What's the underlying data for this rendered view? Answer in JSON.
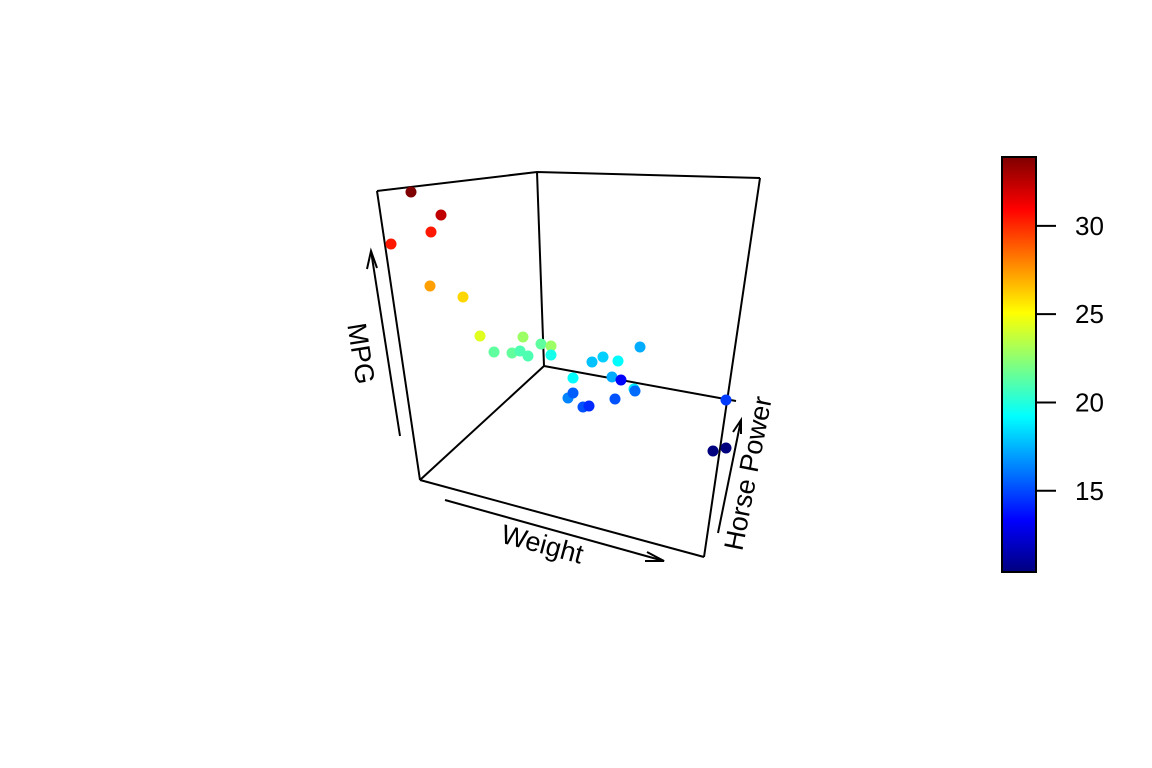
{
  "chart_data": {
    "type": "scatter",
    "projection": "3d",
    "title": "",
    "xlabel": "Weight",
    "ylabel": "Horse Power",
    "zlabel": "MPG",
    "color_variable": "MPG",
    "colormap": "jet",
    "colorbar": {
      "ticks": [
        15,
        20,
        25,
        30
      ],
      "tick_labels": [
        "15",
        "20",
        "25",
        "30"
      ],
      "range": [
        10.4,
        33.9
      ],
      "placement": "right"
    },
    "points": [
      {
        "mpg": 33.9
      },
      {
        "mpg": 32.4
      },
      {
        "mpg": 30.4
      },
      {
        "mpg": 30.4
      },
      {
        "mpg": 27.3
      },
      {
        "mpg": 26.0
      },
      {
        "mpg": 22.8
      },
      {
        "mpg": 24.4
      },
      {
        "mpg": 21.4
      },
      {
        "mpg": 21.5
      },
      {
        "mpg": 21.0
      },
      {
        "mpg": 21.0
      },
      {
        "mpg": 21.4
      },
      {
        "mpg": 22.8
      },
      {
        "mpg": 19.7
      },
      {
        "mpg": 19.2
      },
      {
        "mpg": 17.8
      },
      {
        "mpg": 19.2
      },
      {
        "mpg": 18.1
      },
      {
        "mpg": 17.3
      },
      {
        "mpg": 16.4
      },
      {
        "mpg": 15.5
      },
      {
        "mpg": 15.2
      },
      {
        "mpg": 14.3
      },
      {
        "mpg": 15.2
      },
      {
        "mpg": 13.3
      },
      {
        "mpg": 18.7
      },
      {
        "mpg": 15.8
      },
      {
        "mpg": 17.3
      },
      {
        "mpg": 14.7
      },
      {
        "mpg": 10.4
      },
      {
        "mpg": 10.4
      }
    ]
  }
}
